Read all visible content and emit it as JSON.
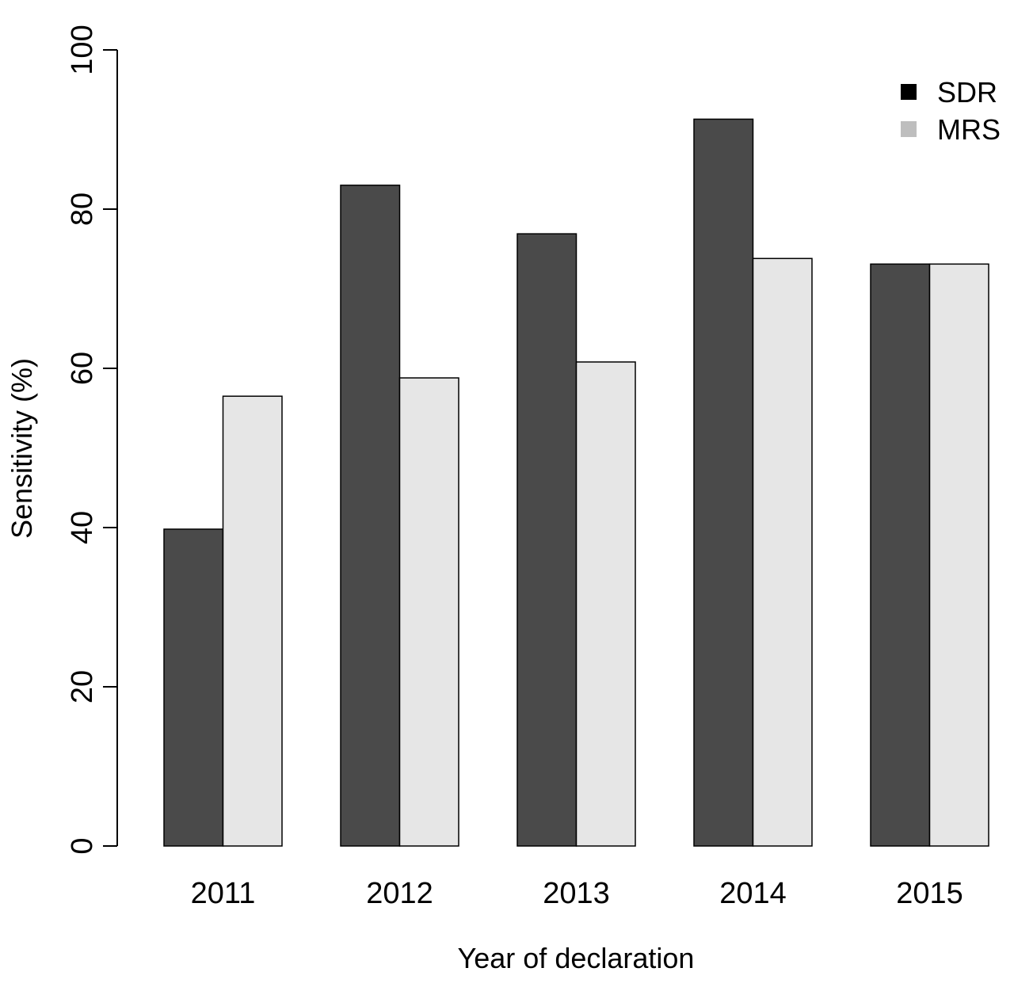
{
  "chart_data": {
    "type": "bar",
    "title": "",
    "xlabel": "Year of declaration",
    "ylabel": "Sensitivity (%)",
    "ylim": [
      0,
      100
    ],
    "yticks": [
      "0",
      "20",
      "40",
      "60",
      "80",
      "100"
    ],
    "categories": [
      "2011",
      "2012",
      "2013",
      "2014",
      "2015"
    ],
    "series": [
      {
        "name": "SDR",
        "values": [
          39.8,
          83.0,
          76.9,
          91.3,
          73.1
        ],
        "color": "#4a4a4a"
      },
      {
        "name": "MRS",
        "values": [
          56.5,
          58.8,
          60.8,
          73.8,
          73.1
        ],
        "color": "#e6e6e6"
      }
    ],
    "legend": {
      "position": "top-right",
      "items": [
        {
          "label": "SDR",
          "swatch_color": "#000000"
        },
        {
          "label": "MRS",
          "swatch_color": "#bebebe"
        }
      ]
    },
    "grid": false
  }
}
